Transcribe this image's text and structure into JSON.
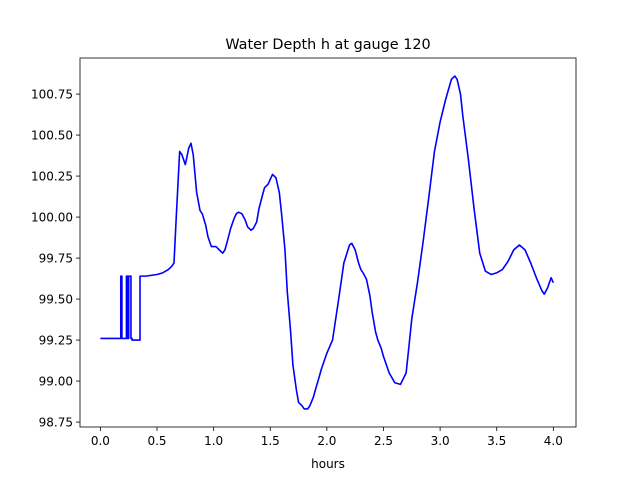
{
  "chart_data": {
    "type": "line",
    "title": "Water Depth h at gauge 120",
    "xlabel": "hours",
    "ylabel": "",
    "xlim": [
      -0.18,
      4.2
    ],
    "ylim": [
      98.72,
      100.97
    ],
    "xticks": [
      0.0,
      0.5,
      1.0,
      1.5,
      2.0,
      2.5,
      3.0,
      3.5,
      4.0
    ],
    "xtick_labels": [
      "0.0",
      "0.5",
      "1.0",
      "1.5",
      "2.0",
      "2.5",
      "3.0",
      "3.5",
      "4.0"
    ],
    "yticks": [
      98.75,
      99.0,
      99.25,
      99.5,
      99.75,
      100.0,
      100.25,
      100.5,
      100.75
    ],
    "ytick_labels": [
      "98.75",
      "99.00",
      "99.25",
      "99.50",
      "99.75",
      "100.00",
      "100.25",
      "100.50",
      "100.75"
    ],
    "grid": false,
    "series": [
      {
        "color": "#0000ff",
        "x": [
          0.0,
          0.18,
          0.18,
          0.19,
          0.19,
          0.23,
          0.23,
          0.24,
          0.24,
          0.25,
          0.25,
          0.27,
          0.27,
          0.28,
          0.28,
          0.34,
          0.35,
          0.35,
          0.4,
          0.5,
          0.55,
          0.6,
          0.63,
          0.65,
          0.67,
          0.7,
          0.72,
          0.75,
          0.78,
          0.8,
          0.82,
          0.85,
          0.88,
          0.9,
          0.93,
          0.95,
          0.98,
          1.0,
          1.02,
          1.05,
          1.08,
          1.1,
          1.12,
          1.15,
          1.18,
          1.2,
          1.22,
          1.25,
          1.28,
          1.3,
          1.33,
          1.35,
          1.38,
          1.4,
          1.43,
          1.45,
          1.48,
          1.5,
          1.52,
          1.55,
          1.58,
          1.6,
          1.63,
          1.65,
          1.68,
          1.7,
          1.73,
          1.75,
          1.78,
          1.8,
          1.83,
          1.85,
          1.88,
          1.9,
          1.93,
          1.95,
          1.98,
          2.0,
          2.05,
          2.1,
          2.15,
          2.2,
          2.22,
          2.25,
          2.28,
          2.3,
          2.32,
          2.35,
          2.38,
          2.4,
          2.43,
          2.45,
          2.48,
          2.5,
          2.55,
          2.6,
          2.65,
          2.7,
          2.72,
          2.75,
          2.8,
          2.85,
          2.9,
          2.95,
          3.0,
          3.05,
          3.1,
          3.13,
          3.15,
          3.18,
          3.2,
          3.25,
          3.3,
          3.35,
          3.4,
          3.45,
          3.5,
          3.55,
          3.6,
          3.65,
          3.7,
          3.75,
          3.8,
          3.85,
          3.9,
          3.92,
          3.95,
          3.98,
          4.0
        ],
        "y": [
          99.26,
          99.26,
          99.64,
          99.64,
          99.26,
          99.26,
          99.64,
          99.64,
          99.26,
          99.26,
          99.64,
          99.64,
          99.26,
          99.26,
          99.25,
          99.25,
          99.25,
          99.64,
          99.64,
          99.65,
          99.66,
          99.68,
          99.7,
          99.72,
          100.0,
          100.4,
          100.38,
          100.32,
          100.42,
          100.45,
          100.38,
          100.15,
          100.04,
          100.02,
          99.95,
          99.88,
          99.82,
          99.82,
          99.82,
          99.8,
          99.78,
          99.8,
          99.85,
          99.93,
          99.99,
          100.02,
          100.03,
          100.02,
          99.98,
          99.94,
          99.92,
          99.93,
          99.97,
          100.05,
          100.13,
          100.18,
          100.2,
          100.23,
          100.26,
          100.24,
          100.15,
          100.02,
          99.8,
          99.55,
          99.3,
          99.1,
          98.95,
          98.87,
          98.85,
          98.83,
          98.83,
          98.85,
          98.9,
          98.95,
          99.02,
          99.07,
          99.13,
          99.17,
          99.25,
          99.48,
          99.72,
          99.83,
          99.84,
          99.8,
          99.72,
          99.68,
          99.66,
          99.62,
          99.52,
          99.42,
          99.3,
          99.25,
          99.2,
          99.15,
          99.05,
          98.99,
          98.98,
          99.05,
          99.18,
          99.38,
          99.6,
          99.85,
          100.12,
          100.4,
          100.58,
          100.72,
          100.84,
          100.86,
          100.84,
          100.75,
          100.62,
          100.35,
          100.05,
          99.78,
          99.67,
          99.65,
          99.66,
          99.68,
          99.73,
          99.8,
          99.83,
          99.8,
          99.72,
          99.63,
          99.55,
          99.53,
          99.57,
          99.63,
          99.6
        ]
      }
    ]
  }
}
